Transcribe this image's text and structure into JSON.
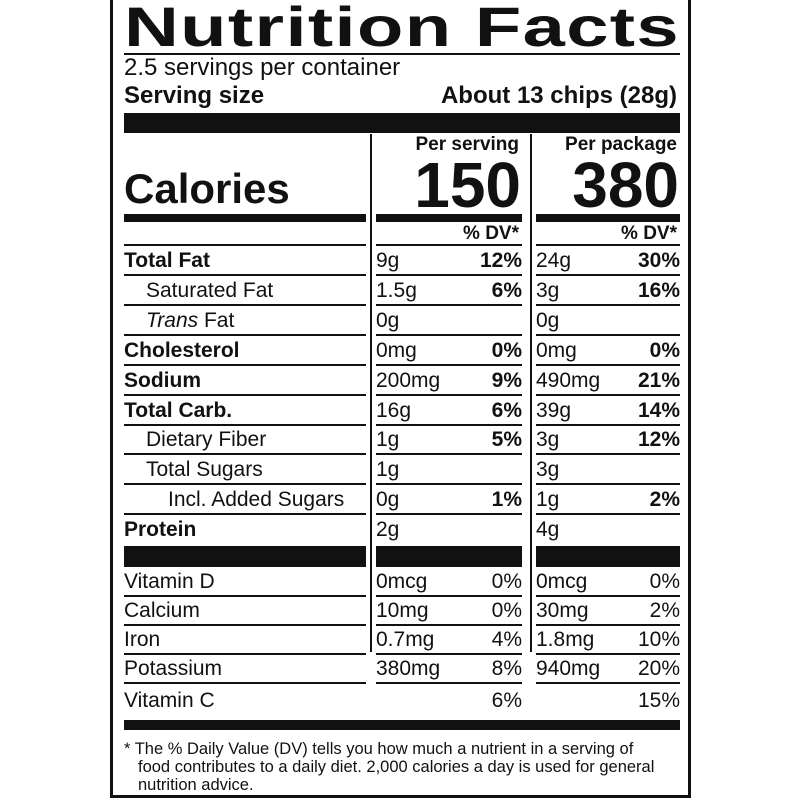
{
  "title": "Nutrition Facts",
  "servings_per_container": "2.5 servings per container",
  "serving_size_label": "Serving size",
  "serving_size_value": "About 13 chips (28g)",
  "calories_label": "Calories",
  "per_serving_label": "Per serving",
  "per_package_label": "Per package",
  "calories_per_serving": "150",
  "calories_per_package": "380",
  "dv_header": "% DV*",
  "nutrients": [
    {
      "name": "Total Fat",
      "style": "bold",
      "indent": 0,
      "s_amt": "9g",
      "s_pct": "12%",
      "p_amt": "24g",
      "p_pct": "30%"
    },
    {
      "name": "Saturated Fat",
      "style": "",
      "indent": 1,
      "s_amt": "1.5g",
      "s_pct": "6%",
      "p_amt": "3g",
      "p_pct": "16%"
    },
    {
      "name_italic": "Trans",
      "name": " Fat",
      "style": "",
      "indent": 1,
      "s_amt": "0g",
      "s_pct": "",
      "p_amt": "0g",
      "p_pct": ""
    },
    {
      "name": "Cholesterol",
      "style": "bold",
      "indent": 0,
      "s_amt": "0mg",
      "s_pct": "0%",
      "p_amt": "0mg",
      "p_pct": "0%"
    },
    {
      "name": "Sodium",
      "style": "bold",
      "indent": 0,
      "s_amt": "200mg",
      "s_pct": "9%",
      "p_amt": "490mg",
      "p_pct": "21%"
    },
    {
      "name": "Total Carb.",
      "style": "bold",
      "indent": 0,
      "s_amt": "16g",
      "s_pct": "6%",
      "p_amt": "39g",
      "p_pct": "14%"
    },
    {
      "name": "Dietary Fiber",
      "style": "",
      "indent": 1,
      "s_amt": "1g",
      "s_pct": "5%",
      "p_amt": "3g",
      "p_pct": "12%"
    },
    {
      "name": "Total Sugars",
      "style": "",
      "indent": 1,
      "s_amt": "1g",
      "s_pct": "",
      "p_amt": "3g",
      "p_pct": ""
    },
    {
      "name": "Incl. Added Sugars",
      "style": "",
      "indent": 2,
      "s_amt": "0g",
      "s_pct": "1%",
      "p_amt": "1g",
      "p_pct": "2%"
    },
    {
      "name": "Protein",
      "style": "bold",
      "indent": 0,
      "s_amt": "2g",
      "s_pct": "",
      "p_amt": "4g",
      "p_pct": ""
    }
  ],
  "vitamins": [
    {
      "name": "Vitamin D",
      "s_amt": "0mcg",
      "s_pct": "0%",
      "p_amt": "0mcg",
      "p_pct": "0%"
    },
    {
      "name": "Calcium",
      "s_amt": "10mg",
      "s_pct": "0%",
      "p_amt": "30mg",
      "p_pct": "2%"
    },
    {
      "name": "Iron",
      "s_amt": "0.7mg",
      "s_pct": "4%",
      "p_amt": "1.8mg",
      "p_pct": "10%"
    },
    {
      "name": "Potassium",
      "s_amt": "380mg",
      "s_pct": "8%",
      "p_amt": "940mg",
      "p_pct": "20%"
    },
    {
      "name": "Vitamin C",
      "s_amt": "",
      "s_pct": "6%",
      "p_amt": "",
      "p_pct": "15%"
    }
  ],
  "footnote": "* The % Daily Value (DV) tells you how much a nutrient in a serving of food contributes to a daily diet. 2,000 calories a day is used for general nutrition advice."
}
